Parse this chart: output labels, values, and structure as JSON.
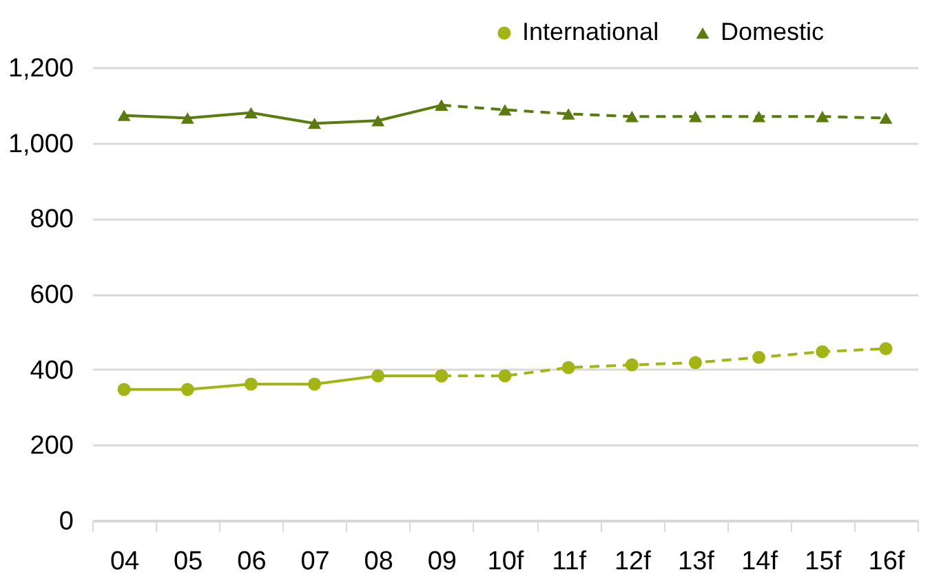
{
  "chart_data": {
    "type": "line",
    "categories": [
      "04",
      "05",
      "06",
      "07",
      "08",
      "09",
      "10f",
      "11f",
      "12f",
      "13f",
      "14f",
      "15f",
      "16f"
    ],
    "series": [
      {
        "name": "International",
        "color": "#a3b516",
        "marker": "circle",
        "line_style": "solid",
        "values": [
          347,
          347,
          361,
          361,
          383,
          383,
          null,
          null,
          null,
          null,
          null,
          null,
          null
        ]
      },
      {
        "color": "#a3b516",
        "marker": "circle",
        "line_style": "dashed",
        "values": [
          null,
          null,
          null,
          null,
          null,
          383,
          383,
          405,
          412,
          418,
          432,
          447,
          455
        ]
      },
      {
        "name": "Domestic",
        "color": "#5b7b0f",
        "marker": "triangle",
        "line_style": "solid",
        "values": [
          1073,
          1066,
          1080,
          1052,
          1059,
          1100,
          null,
          null,
          null,
          null,
          null,
          null,
          null
        ]
      },
      {
        "color": "#5b7b0f",
        "marker": "triangle",
        "line_style": "dashed",
        "values": [
          null,
          null,
          null,
          null,
          null,
          1100,
          1088,
          1077,
          1070,
          1070,
          1070,
          1070,
          1066
        ]
      }
    ],
    "ylim": [
      0,
      1200
    ],
    "yticks": [
      0,
      200,
      400,
      600,
      800,
      {
        "value": 1000,
        "label": "1,000"
      },
      {
        "value": 1200,
        "label": "1,200"
      }
    ],
    "grid": "y",
    "legend": "top right"
  }
}
